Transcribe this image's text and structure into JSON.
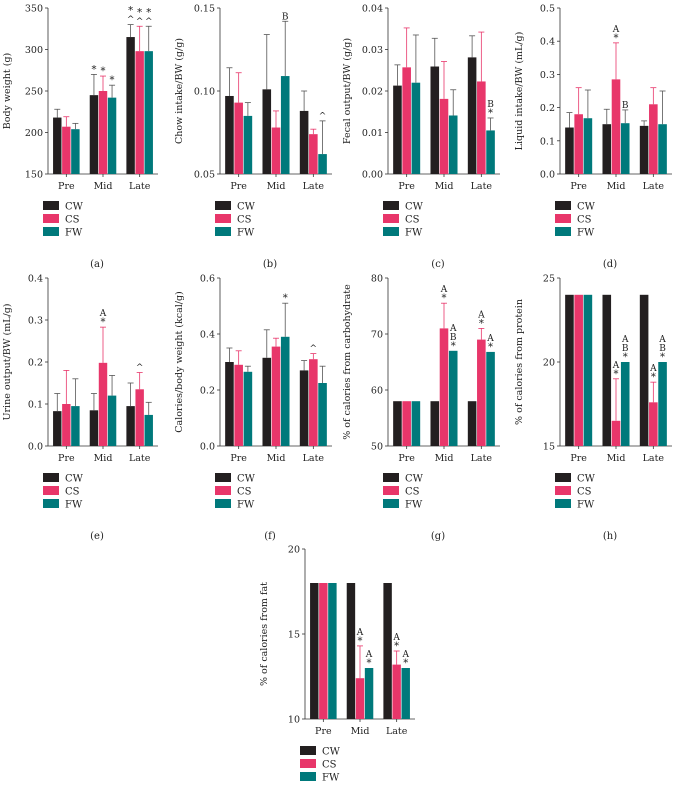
{
  "chart_data": [
    {
      "id": "a",
      "panel_label": "(a)",
      "type": "bar",
      "ylabel": "Body weight (g)",
      "ylim": [
        150,
        350
      ],
      "yticks": [
        150,
        200,
        250,
        300,
        350
      ],
      "categories": [
        "Pre",
        "Mid",
        "Late"
      ],
      "series": [
        {
          "name": "CW",
          "values": [
            218,
            245,
            315
          ],
          "errors": [
            10,
            25,
            15
          ],
          "marks": [
            [],
            [
              "*"
            ],
            [
              "*",
              "^"
            ]
          ]
        },
        {
          "name": "CS",
          "values": [
            207,
            250,
            298
          ],
          "errors": [
            12,
            18,
            30
          ],
          "marks": [
            [],
            [
              "*"
            ],
            [
              "*",
              "^"
            ]
          ]
        },
        {
          "name": "FW",
          "values": [
            204,
            242,
            298
          ],
          "errors": [
            7,
            15,
            30
          ],
          "marks": [
            [],
            [
              "*"
            ],
            [
              "*",
              "^"
            ]
          ]
        }
      ]
    },
    {
      "id": "b",
      "panel_label": "(b)",
      "type": "bar",
      "ylabel": "Chow intake/BW (g/g)",
      "ylim": [
        0.05,
        0.15
      ],
      "yticks": [
        0.05,
        0.1,
        0.15
      ],
      "ytick_labels": [
        "0.05",
        "0.10",
        "0.15"
      ],
      "categories": [
        "Pre",
        "Mid",
        "Late"
      ],
      "series": [
        {
          "name": "CW",
          "values": [
            0.097,
            0.101,
            0.088
          ],
          "errors": [
            0.017,
            0.033,
            0.012
          ],
          "marks": [
            [],
            [],
            []
          ]
        },
        {
          "name": "CS",
          "values": [
            0.093,
            0.078,
            0.074
          ],
          "errors": [
            0.018,
            0.01,
            0.003
          ],
          "marks": [
            [],
            [],
            []
          ]
        },
        {
          "name": "FW",
          "values": [
            0.085,
            0.109,
            0.062
          ],
          "errors": [
            0.008,
            0.033,
            0.02
          ],
          "marks": [
            [],
            [
              "B"
            ],
            [
              "^"
            ]
          ]
        }
      ]
    },
    {
      "id": "c",
      "panel_label": "(c)",
      "type": "bar",
      "ylabel": "Fecal output/BW (g/g)",
      "ylim": [
        0,
        0.04
      ],
      "yticks": [
        0,
        0.01,
        0.02,
        0.03,
        0.04
      ],
      "ytick_labels": [
        "0.00",
        "0.01",
        "0.02",
        "0.03",
        "0.04"
      ],
      "categories": [
        "Pre",
        "Mid",
        "Late"
      ],
      "series": [
        {
          "name": "CW",
          "values": [
            0.0213,
            0.0259,
            0.0281
          ],
          "errors": [
            0.005,
            0.0068,
            0.0052
          ],
          "marks": [
            [],
            [],
            []
          ]
        },
        {
          "name": "CS",
          "values": [
            0.0257,
            0.0181,
            0.0223
          ],
          "errors": [
            0.0095,
            0.009,
            0.0119
          ],
          "marks": [
            [],
            [],
            []
          ]
        },
        {
          "name": "FW",
          "values": [
            0.022,
            0.0141,
            0.0105
          ],
          "errors": [
            0.0115,
            0.0062,
            0.003
          ],
          "marks": [
            [],
            [],
            [
              "B",
              "*"
            ]
          ]
        }
      ]
    },
    {
      "id": "d",
      "panel_label": "(d)",
      "type": "bar",
      "ylabel": "Liquid intake/BW (mL/g)",
      "ylim": [
        0,
        0.5
      ],
      "yticks": [
        0,
        0.1,
        0.2,
        0.3,
        0.4,
        0.5
      ],
      "ytick_labels": [
        "0.0",
        "0.1",
        "0.2",
        "0.3",
        "0.4",
        "0.5"
      ],
      "categories": [
        "Pre",
        "Mid",
        "Late"
      ],
      "series": [
        {
          "name": "CW",
          "values": [
            0.14,
            0.15,
            0.145
          ],
          "errors": [
            0.045,
            0.045,
            0.015
          ],
          "marks": [
            [],
            [],
            []
          ]
        },
        {
          "name": "CS",
          "values": [
            0.18,
            0.285,
            0.21
          ],
          "errors": [
            0.08,
            0.11,
            0.05
          ],
          "marks": [
            [],
            [
              "A",
              "*"
            ],
            []
          ]
        },
        {
          "name": "FW",
          "values": [
            0.168,
            0.153,
            0.15
          ],
          "errors": [
            0.085,
            0.04,
            0.1
          ],
          "marks": [
            [],
            [
              "B"
            ],
            []
          ]
        }
      ]
    },
    {
      "id": "e",
      "panel_label": "(e)",
      "type": "bar",
      "ylabel": "Urine output/BW (mL/g)",
      "ylim": [
        0,
        0.4
      ],
      "yticks": [
        0,
        0.1,
        0.2,
        0.3,
        0.4
      ],
      "ytick_labels": [
        "0.0",
        "0.1",
        "0.2",
        "0.3",
        "0.4"
      ],
      "categories": [
        "Pre",
        "Mid",
        "Late"
      ],
      "series": [
        {
          "name": "CW",
          "values": [
            0.083,
            0.085,
            0.095
          ],
          "errors": [
            0.042,
            0.04,
            0.055
          ],
          "marks": [
            [],
            [],
            []
          ]
        },
        {
          "name": "CS",
          "values": [
            0.1,
            0.198,
            0.135
          ],
          "errors": [
            0.08,
            0.085,
            0.04
          ],
          "marks": [
            [],
            [
              "A",
              "*"
            ],
            [
              "^"
            ]
          ]
        },
        {
          "name": "FW",
          "values": [
            0.095,
            0.12,
            0.074
          ],
          "errors": [
            0.065,
            0.048,
            0.03
          ],
          "marks": [
            [],
            [],
            []
          ]
        }
      ]
    },
    {
      "id": "f",
      "panel_label": "(f)",
      "type": "bar",
      "ylabel": "Calories/body weight (kcal/g)",
      "ylim": [
        0,
        0.6
      ],
      "yticks": [
        0,
        0.2,
        0.4,
        0.6
      ],
      "ytick_labels": [
        "0.0",
        "0.2",
        "0.4",
        "0.6"
      ],
      "categories": [
        "Pre",
        "Mid",
        "Late"
      ],
      "series": [
        {
          "name": "CW",
          "values": [
            0.3,
            0.315,
            0.27
          ],
          "errors": [
            0.05,
            0.1,
            0.035
          ],
          "marks": [
            [],
            [],
            []
          ]
        },
        {
          "name": "CS",
          "values": [
            0.29,
            0.355,
            0.31
          ],
          "errors": [
            0.05,
            0.03,
            0.02
          ],
          "marks": [
            [],
            [],
            [
              "^"
            ]
          ]
        },
        {
          "name": "FW",
          "values": [
            0.265,
            0.39,
            0.225
          ],
          "errors": [
            0.02,
            0.12,
            0.06
          ],
          "marks": [
            [],
            [
              "*"
            ],
            []
          ]
        }
      ]
    },
    {
      "id": "g",
      "panel_label": "(g)",
      "type": "bar",
      "ylabel": "% of calories from carbohydrate",
      "ylim": [
        50,
        80
      ],
      "yticks": [
        50,
        60,
        70,
        80
      ],
      "categories": [
        "Pre",
        "Mid",
        "Late"
      ],
      "series": [
        {
          "name": "CW",
          "values": [
            58,
            58,
            58
          ],
          "errors": [
            0,
            0,
            0
          ],
          "marks": [
            [],
            [],
            []
          ]
        },
        {
          "name": "CS",
          "values": [
            58,
            71,
            69
          ],
          "errors": [
            0,
            4.5,
            2
          ],
          "marks": [
            [],
            [
              "A",
              "*"
            ],
            [
              "A",
              "*"
            ]
          ]
        },
        {
          "name": "FW",
          "values": [
            58,
            67,
            66.8
          ],
          "errors": [
            0,
            0,
            0
          ],
          "marks": [
            [],
            [
              "A",
              "B",
              "*"
            ],
            [
              "A",
              "*"
            ]
          ]
        }
      ]
    },
    {
      "id": "h",
      "panel_label": "(h)",
      "type": "bar",
      "ylabel": "% of calories from protein",
      "ylim": [
        15,
        25
      ],
      "yticks": [
        15,
        20,
        25
      ],
      "categories": [
        "Pre",
        "Mid",
        "Late"
      ],
      "series": [
        {
          "name": "CW",
          "values": [
            24,
            24,
            24
          ],
          "errors": [
            0,
            0,
            0
          ],
          "marks": [
            [],
            [],
            []
          ]
        },
        {
          "name": "CS",
          "values": [
            24,
            16.5,
            17.6
          ],
          "errors": [
            0,
            2.5,
            1.2
          ],
          "marks": [
            [],
            [
              "A",
              "*"
            ],
            [
              "A",
              "*"
            ]
          ]
        },
        {
          "name": "FW",
          "values": [
            24,
            20,
            20
          ],
          "errors": [
            0,
            0,
            0
          ],
          "marks": [
            [],
            [
              "A",
              "B",
              "*"
            ],
            [
              "A",
              "B",
              "*"
            ]
          ]
        }
      ]
    },
    {
      "id": "i",
      "panel_label": "(i)",
      "type": "bar",
      "ylabel": "% of calories from fat",
      "ylim": [
        10,
        20
      ],
      "yticks": [
        10,
        15,
        20
      ],
      "categories": [
        "Pre",
        "Mid",
        "Late"
      ],
      "series": [
        {
          "name": "CW",
          "values": [
            18,
            18,
            18
          ],
          "errors": [
            0,
            0,
            0
          ],
          "marks": [
            [],
            [],
            []
          ]
        },
        {
          "name": "CS",
          "values": [
            18,
            12.4,
            13.2
          ],
          "errors": [
            0,
            1.9,
            0.8
          ],
          "marks": [
            [],
            [
              "A",
              "*"
            ],
            [
              "A",
              "*"
            ]
          ]
        },
        {
          "name": "FW",
          "values": [
            18,
            13,
            13
          ],
          "errors": [
            0,
            0,
            0
          ],
          "marks": [
            [],
            [
              "A",
              "*"
            ],
            [
              "A",
              "*"
            ]
          ]
        }
      ]
    }
  ],
  "colors": {
    "CW": "#231f20",
    "CS": "#e8366a",
    "FW": "#00797b",
    "error_CS": "#e8366a",
    "error_other": "#555555"
  }
}
